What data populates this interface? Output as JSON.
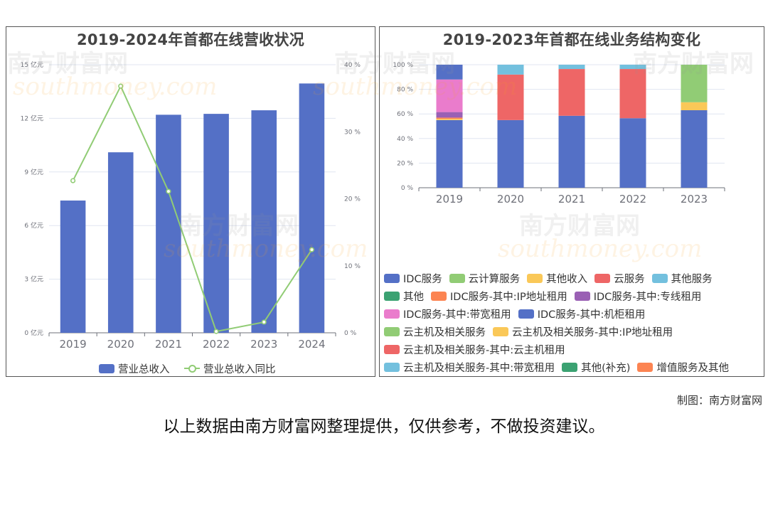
{
  "watermark": {
    "brand": "南方财富网",
    "url": "southmoney.com"
  },
  "credit": "制图：南方财富网",
  "disclaimer": "以上数据由南方财富网整理提供，仅供参考，不做投资建议。",
  "chart_data": [
    {
      "type": "bar",
      "title": "2019-2024年首都在线营收状况",
      "categories": [
        "2019",
        "2020",
        "2021",
        "2022",
        "2023",
        "2024"
      ],
      "series": [
        {
          "name": "营业总收入",
          "chart": "bar",
          "axis": "left",
          "color": "#5470c6",
          "values": [
            7.4,
            10.1,
            12.2,
            12.25,
            12.45,
            13.95
          ]
        },
        {
          "name": "营业总收入同比",
          "chart": "line",
          "axis": "right",
          "color": "#91cc75",
          "values": [
            22.7,
            36.8,
            21.1,
            0.2,
            1.6,
            12.4
          ]
        }
      ],
      "yaxis_left": {
        "min": 0,
        "max": 15,
        "ticks": [
          "0 亿元",
          "3 亿元",
          "6 亿元",
          "9 亿元",
          "12 亿元",
          "15 亿元"
        ]
      },
      "yaxis_right": {
        "min": 0,
        "max": 40,
        "ticks": [
          "0 %",
          "10 %",
          "20 %",
          "30 %",
          "40 %"
        ]
      },
      "legend_position": "bottom",
      "grid": true
    },
    {
      "type": "bar",
      "stacked": true,
      "title": "2019-2023年首都在线业务结构变化",
      "categories": [
        "2019",
        "2020",
        "2021",
        "2022",
        "2023"
      ],
      "yaxis": {
        "min": 0,
        "max": 100,
        "ticks": [
          "0 %",
          "20 %",
          "40 %",
          "60 %",
          "80 %",
          "100 %"
        ]
      },
      "series": [
        {
          "name": "IDC服务",
          "color": "#5470c6",
          "values": [
            55,
            55,
            58.5,
            56.5,
            63
          ]
        },
        {
          "name": "云计算服务",
          "color": "#91cc75",
          "values": [
            0,
            0,
            0,
            0,
            0
          ]
        },
        {
          "name": "其他收入",
          "color": "#fac858",
          "values": [
            1,
            0,
            0,
            0,
            6.5
          ]
        },
        {
          "name": "云服务",
          "color": "#ee6666",
          "values": [
            0,
            37,
            38,
            40,
            0
          ]
        },
        {
          "name": "其他服务",
          "color": "#73c0de",
          "values": [
            0,
            8,
            3.5,
            3.5,
            0
          ]
        },
        {
          "name": "其他",
          "color": "#3ba272",
          "values": [
            0,
            0,
            0,
            0,
            0
          ]
        },
        {
          "name": "IDC服务-其中:IP地址租用",
          "color": "#fc8452",
          "values": [
            1,
            0,
            0,
            0,
            0
          ]
        },
        {
          "name": "IDC服务-其中:专线租用",
          "color": "#9a60b4",
          "values": [
            4.5,
            0,
            0,
            0,
            0
          ]
        },
        {
          "name": "IDC服务-其中:带宽租用",
          "color": "#ea7ccc",
          "values": [
            26.5,
            0,
            0,
            0,
            0
          ]
        },
        {
          "name": "IDC服务-其中:机柜租用",
          "color": "#5470c6",
          "values": [
            12,
            0,
            0,
            0,
            0
          ]
        },
        {
          "name": "云主机及相关服务",
          "color": "#91cc75",
          "values": [
            0,
            0,
            0,
            0,
            30.5
          ]
        },
        {
          "name": "云主机及相关服务-其中:IP地址租用",
          "color": "#fac858",
          "values": [
            0,
            0,
            0,
            0,
            0
          ]
        },
        {
          "name": "云主机及相关服务-其中:云主机租用",
          "color": "#ee6666",
          "values": [
            0,
            0,
            0,
            0,
            0
          ]
        },
        {
          "name": "云主机及相关服务-其中:带宽租用",
          "color": "#73c0de",
          "values": [
            0,
            0,
            0,
            0,
            0
          ]
        },
        {
          "name": "其他(补充)",
          "color": "#3ba272",
          "values": [
            0,
            0,
            0,
            0,
            0
          ]
        },
        {
          "name": "增值服务及其他",
          "color": "#fc8452",
          "values": [
            0,
            0,
            0,
            0,
            0
          ]
        }
      ],
      "legend_position": "bottom",
      "grid": true
    }
  ]
}
